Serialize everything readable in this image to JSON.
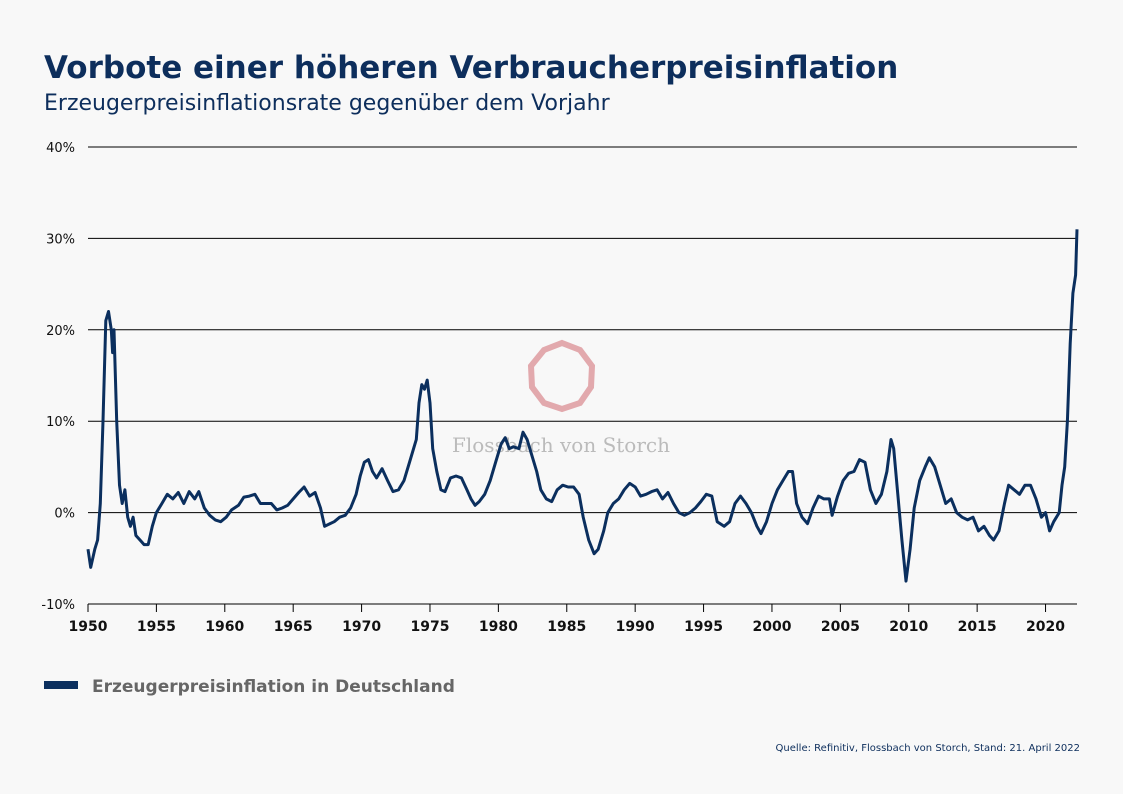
{
  "chart_data": {
    "type": "line",
    "title": "Vorbote einer höheren Verbraucherpreisinflation",
    "subtitle": "Erzeugerpreisinflationsrate gegenüber dem Vorjahr",
    "watermark": "Flossbach von Storch",
    "source": "Quelle: Refinitiv, Flossbach von Storch, Stand: 21. April 2022",
    "grid": true,
    "xlim": [
      1950,
      2022.3
    ],
    "xticks": [
      1950,
      1955,
      1960,
      1965,
      1970,
      1975,
      1980,
      1985,
      1990,
      1995,
      2000,
      2005,
      2010,
      2015,
      2020
    ],
    "ylim": [
      -10,
      40
    ],
    "yticks": [
      {
        "value": -10,
        "label": "-10%"
      },
      {
        "value": 0,
        "label": "0%"
      },
      {
        "value": 10,
        "label": "10%"
      },
      {
        "value": 20,
        "label": "20%"
      },
      {
        "value": 30,
        "label": "30%"
      },
      {
        "value": 40,
        "label": "40%"
      }
    ],
    "x": [
      1950.0,
      1950.2,
      1950.5,
      1950.7,
      1950.9,
      1951.1,
      1951.3,
      1951.5,
      1951.7,
      1951.8,
      1951.9,
      1952.1,
      1952.3,
      1952.5,
      1952.7,
      1952.9,
      1953.1,
      1953.3,
      1953.5,
      1953.8,
      1954.1,
      1954.4,
      1954.7,
      1955.0,
      1955.4,
      1955.8,
      1956.2,
      1956.6,
      1957.0,
      1957.4,
      1957.8,
      1958.1,
      1958.5,
      1958.9,
      1959.3,
      1959.7,
      1960.1,
      1960.5,
      1961.0,
      1961.4,
      1961.8,
      1962.2,
      1962.6,
      1963.0,
      1963.4,
      1963.8,
      1964.2,
      1964.6,
      1965.0,
      1965.4,
      1965.8,
      1966.2,
      1966.6,
      1967.0,
      1967.3,
      1967.7,
      1968.0,
      1968.4,
      1968.8,
      1969.2,
      1969.6,
      1969.9,
      1970.2,
      1970.5,
      1970.8,
      1971.1,
      1971.5,
      1971.9,
      1972.3,
      1972.7,
      1973.1,
      1973.5,
      1973.8,
      1974.0,
      1974.2,
      1974.4,
      1974.6,
      1974.8,
      1975.0,
      1975.2,
      1975.5,
      1975.8,
      1976.1,
      1976.5,
      1976.9,
      1977.3,
      1977.7,
      1978.0,
      1978.3,
      1978.6,
      1979.0,
      1979.4,
      1979.8,
      1980.2,
      1980.5,
      1980.8,
      1981.1,
      1981.5,
      1981.8,
      1982.1,
      1982.4,
      1982.8,
      1983.1,
      1983.5,
      1983.9,
      1984.3,
      1984.7,
      1985.1,
      1985.5,
      1985.9,
      1986.2,
      1986.6,
      1987.0,
      1987.3,
      1987.7,
      1988.0,
      1988.4,
      1988.8,
      1989.2,
      1989.6,
      1990.0,
      1990.4,
      1990.8,
      1991.2,
      1991.6,
      1992.0,
      1992.4,
      1992.8,
      1993.2,
      1993.6,
      1994.0,
      1994.4,
      1994.8,
      1995.2,
      1995.6,
      1996.0,
      1996.5,
      1996.9,
      1997.3,
      1997.7,
      1998.1,
      1998.5,
      1998.9,
      1999.2,
      1999.6,
      2000.0,
      2000.4,
      2000.8,
      2001.2,
      2001.5,
      2001.8,
      2002.2,
      2002.6,
      2003.0,
      2003.4,
      2003.8,
      2004.2,
      2004.4,
      2004.8,
      2005.2,
      2005.6,
      2006.0,
      2006.4,
      2006.8,
      2007.2,
      2007.6,
      2008.0,
      2008.4,
      2008.7,
      2008.9,
      2009.2,
      2009.5,
      2009.8,
      2010.1,
      2010.4,
      2010.8,
      2011.2,
      2011.5,
      2011.9,
      2012.3,
      2012.7,
      2013.1,
      2013.5,
      2013.9,
      2014.3,
      2014.7,
      2015.1,
      2015.5,
      2015.9,
      2016.2,
      2016.6,
      2017.0,
      2017.3,
      2017.7,
      2018.1,
      2018.5,
      2018.9,
      2019.3,
      2019.7,
      2020.0,
      2020.3,
      2020.6,
      2021.0,
      2021.2,
      2021.4,
      2021.6,
      2021.8,
      2022.0,
      2022.2,
      2022.3
    ],
    "series": [
      {
        "name": "Erzeugerpreisinflation in Deutschland",
        "color": "#0b2f5e",
        "values": [
          -4,
          -6,
          -4,
          -3,
          1,
          10,
          21,
          22,
          20,
          17.5,
          20,
          10,
          3,
          1,
          2.5,
          -0.5,
          -1.5,
          -0.5,
          -2.5,
          -3,
          -3.5,
          -3.5,
          -1.5,
          0,
          1,
          2,
          1.5,
          2.2,
          1,
          2.3,
          1.5,
          2.3,
          0.5,
          -0.3,
          -0.8,
          -1,
          -0.5,
          0.3,
          0.8,
          1.7,
          1.8,
          2,
          1,
          1,
          1,
          0.3,
          0.5,
          0.8,
          1.5,
          2.2,
          2.8,
          1.8,
          2.2,
          0.5,
          -1.5,
          -1.2,
          -1,
          -0.5,
          -0.3,
          0.5,
          2,
          4,
          5.5,
          5.8,
          4.5,
          3.8,
          4.8,
          3.5,
          2.3,
          2.5,
          3.5,
          5.5,
          7,
          8,
          12,
          14,
          13.5,
          14.5,
          12,
          7,
          4.5,
          2.5,
          2.3,
          3.8,
          4,
          3.8,
          2.5,
          1.5,
          0.8,
          1.2,
          2,
          3.5,
          5.5,
          7.5,
          8.2,
          7,
          7.2,
          7,
          8.8,
          8,
          6.5,
          4.5,
          2.5,
          1.5,
          1.2,
          2.5,
          3,
          2.8,
          2.8,
          2,
          -0.5,
          -3,
          -4.5,
          -4,
          -2,
          0,
          1,
          1.5,
          2.5,
          3.2,
          2.8,
          1.8,
          2,
          2.3,
          2.5,
          1.5,
          2.2,
          1,
          0,
          -0.3,
          0,
          0.5,
          1.2,
          2,
          1.8,
          -1,
          -1.5,
          -1,
          1,
          1.8,
          1,
          0,
          -1.5,
          -2.3,
          -1,
          1,
          2.5,
          3.5,
          4.5,
          4.5,
          1,
          -0.5,
          -1.2,
          0.5,
          1.8,
          1.5,
          1.5,
          -0.3,
          1.8,
          3.5,
          4.3,
          4.5,
          5.8,
          5.5,
          2.5,
          1,
          2,
          4.5,
          8,
          7,
          2,
          -3,
          -7.5,
          -4,
          0.5,
          3.5,
          5,
          6,
          5,
          3,
          1,
          1.5,
          0,
          -0.5,
          -0.8,
          -0.5,
          -2,
          -1.5,
          -2.5,
          -3,
          -2,
          1,
          3,
          2.5,
          2,
          3,
          3,
          1.5,
          -0.5,
          0,
          -2,
          -1,
          0,
          3,
          5,
          10,
          18.5,
          24,
          26,
          31
        ]
      }
    ]
  }
}
